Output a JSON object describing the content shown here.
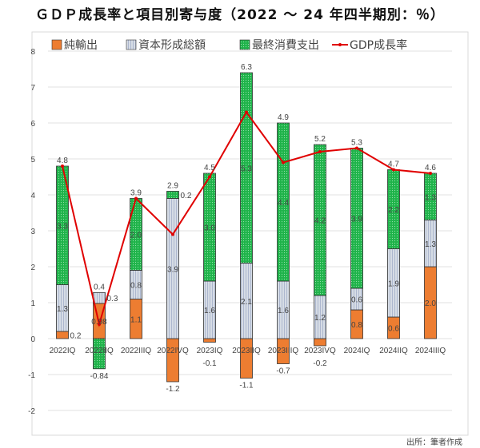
{
  "title": "ＧＤＰ成長率と項目別寄与度（2022 ～ 24 年四半期別：％）",
  "source": "出所：筆者作成",
  "colors": {
    "net_exports": "#ED7D31",
    "capital": "#D6DCE5",
    "consumption": "#1FB34A",
    "gdp": "#E00000"
  },
  "chart_data": {
    "type": "bar",
    "title": "ＧＤＰ成長率と項目別寄与度（2022 ～ 24 年四半期別：％）",
    "categories": [
      "2022IQ",
      "2022IIQ",
      "2022IIIQ",
      "2022IVQ",
      "2023IQ",
      "2023IIQ",
      "2023IIIQ",
      "2023IVQ",
      "2024IQ",
      "2024IIQ",
      "2024IIIQ"
    ],
    "series": [
      {
        "name": "純輸出",
        "kind": "stacked-bar",
        "values": [
          0.2,
          0.98,
          1.1,
          -1.2,
          -0.1,
          -1.1,
          -0.7,
          -0.2,
          0.8,
          0.6,
          2.0
        ],
        "labels": [
          "0.2",
          "0.98",
          "1.1",
          "-1.2",
          "-0.1",
          "-1.1",
          "-0.7",
          "-0.2",
          "0.8",
          "0.6",
          "2.0"
        ]
      },
      {
        "name": "資本形成総額",
        "kind": "stacked-bar",
        "values": [
          1.3,
          0.3,
          0.8,
          3.9,
          1.6,
          2.1,
          1.6,
          1.2,
          0.6,
          1.9,
          1.3
        ],
        "labels": [
          "1.3",
          "0.3",
          "0.8",
          "3.9",
          "1.6",
          "2.1",
          "1.6",
          "1.2",
          "0.6",
          "1.9",
          "1.3"
        ]
      },
      {
        "name": "最終消費支出",
        "kind": "stacked-bar",
        "values": [
          3.3,
          -0.84,
          2.0,
          0.2,
          3.0,
          5.3,
          4.4,
          4.2,
          3.9,
          2.2,
          1.3
        ],
        "labels": [
          "3.3",
          "-0.84",
          "2.0",
          "0.2",
          "3.0",
          "5.3",
          "4.4",
          "4.2",
          "3.9",
          "2.2",
          "1.3"
        ]
      },
      {
        "name": "GDP成長率",
        "kind": "line",
        "values": [
          4.8,
          0.4,
          3.9,
          2.9,
          4.5,
          6.3,
          4.9,
          5.2,
          5.3,
          4.7,
          4.6
        ],
        "labels": [
          "4.8",
          "0.4",
          "3.9",
          "2.9",
          "4.5",
          "6.3",
          "4.9",
          "5.2",
          "5.3",
          "4.7",
          "4.6"
        ]
      }
    ],
    "yticks": [
      "8",
      "7",
      "6",
      "5",
      "4",
      "3",
      "2",
      "1",
      "0",
      "-1",
      "-2"
    ],
    "ylim": [
      -2,
      8
    ],
    "xlabel": "",
    "ylabel": "",
    "grid": true,
    "legend": "top"
  }
}
